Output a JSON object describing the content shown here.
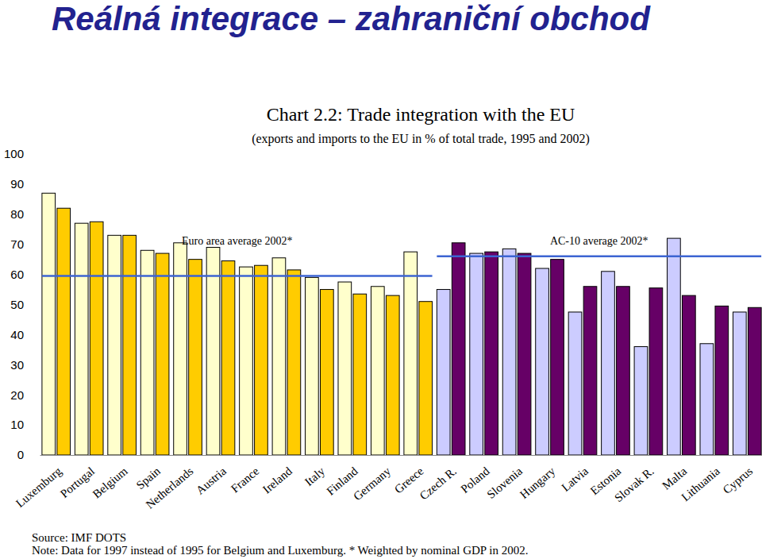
{
  "header": "Reálná integrace – zahraniční obchod",
  "chart_data": {
    "type": "bar",
    "title": "Chart 2.2: Trade integration with the EU",
    "subtitle": "(exports and imports to the EU in % of total trade, 1995 and 2002)",
    "categories": [
      "Luxemburg",
      "Portugal",
      "Belgium",
      "Spain",
      "Netherlands",
      "Austria",
      "France",
      "Ireland",
      "Italy",
      "Finland",
      "Germany",
      "Greece",
      "Czech R.",
      "Poland",
      "Slovenia",
      "Hungary",
      "Latvia",
      "Estonia",
      "Slovak R.",
      "Malta",
      "Lithuania",
      "Cyprus"
    ],
    "series": [
      {
        "colors": [
          "#ffffcc",
          "#ffffcc",
          "#ffffcc",
          "#ffffcc",
          "#ffffcc",
          "#ffffcc",
          "#ffffcc",
          "#ffffcc",
          "#ffffcc",
          "#ffffcc",
          "#ffffcc",
          "#ffffcc",
          "#ccccff",
          "#ccccff",
          "#ccccff",
          "#ccccff",
          "#ccccff",
          "#ccccff",
          "#ccccff",
          "#ccccff",
          "#ccccff",
          "#ccccff"
        ],
        "values": [
          87,
          77,
          73,
          68,
          70.5,
          69,
          62.5,
          65.5,
          59,
          57.5,
          56,
          67.5,
          55,
          67,
          68.5,
          62,
          47.5,
          61,
          36,
          72,
          37,
          47.5
        ]
      },
      {
        "colors": [
          "#ffcc00",
          "#ffcc00",
          "#ffcc00",
          "#ffcc00",
          "#ffcc00",
          "#ffcc00",
          "#ffcc00",
          "#ffcc00",
          "#ffcc00",
          "#ffcc00",
          "#ffcc00",
          "#ffcc00",
          "#660066",
          "#660066",
          "#660066",
          "#660066",
          "#660066",
          "#660066",
          "#660066",
          "#660066",
          "#660066",
          "#660066"
        ],
        "values": [
          82,
          77.5,
          73,
          67,
          65,
          64.5,
          63,
          61.5,
          55,
          53.5,
          53,
          51,
          70.5,
          67.5,
          67,
          65,
          56,
          56,
          55.5,
          53,
          49.5,
          49
        ]
      }
    ],
    "reference_lines": [
      {
        "label": "Euro area average 2002*",
        "value": 59.5,
        "span": [
          "Luxemburg",
          "Greece"
        ],
        "color": "#3c64d2"
      },
      {
        "label": "AC-10 average 2002*",
        "value": 66,
        "span": [
          "Czech R.",
          "Cyprus"
        ],
        "color": "#3c64d2"
      }
    ],
    "ylim": [
      0,
      100
    ],
    "yticks": [
      0,
      10,
      20,
      30,
      40,
      50,
      60,
      70,
      80,
      90,
      100
    ],
    "grid": false,
    "source": "Source: IMF DOTS",
    "note": "Note: Data for 1997 instead of 1995 for Belgium and Luxemburg. * Weighted by nominal GDP in 2002."
  }
}
